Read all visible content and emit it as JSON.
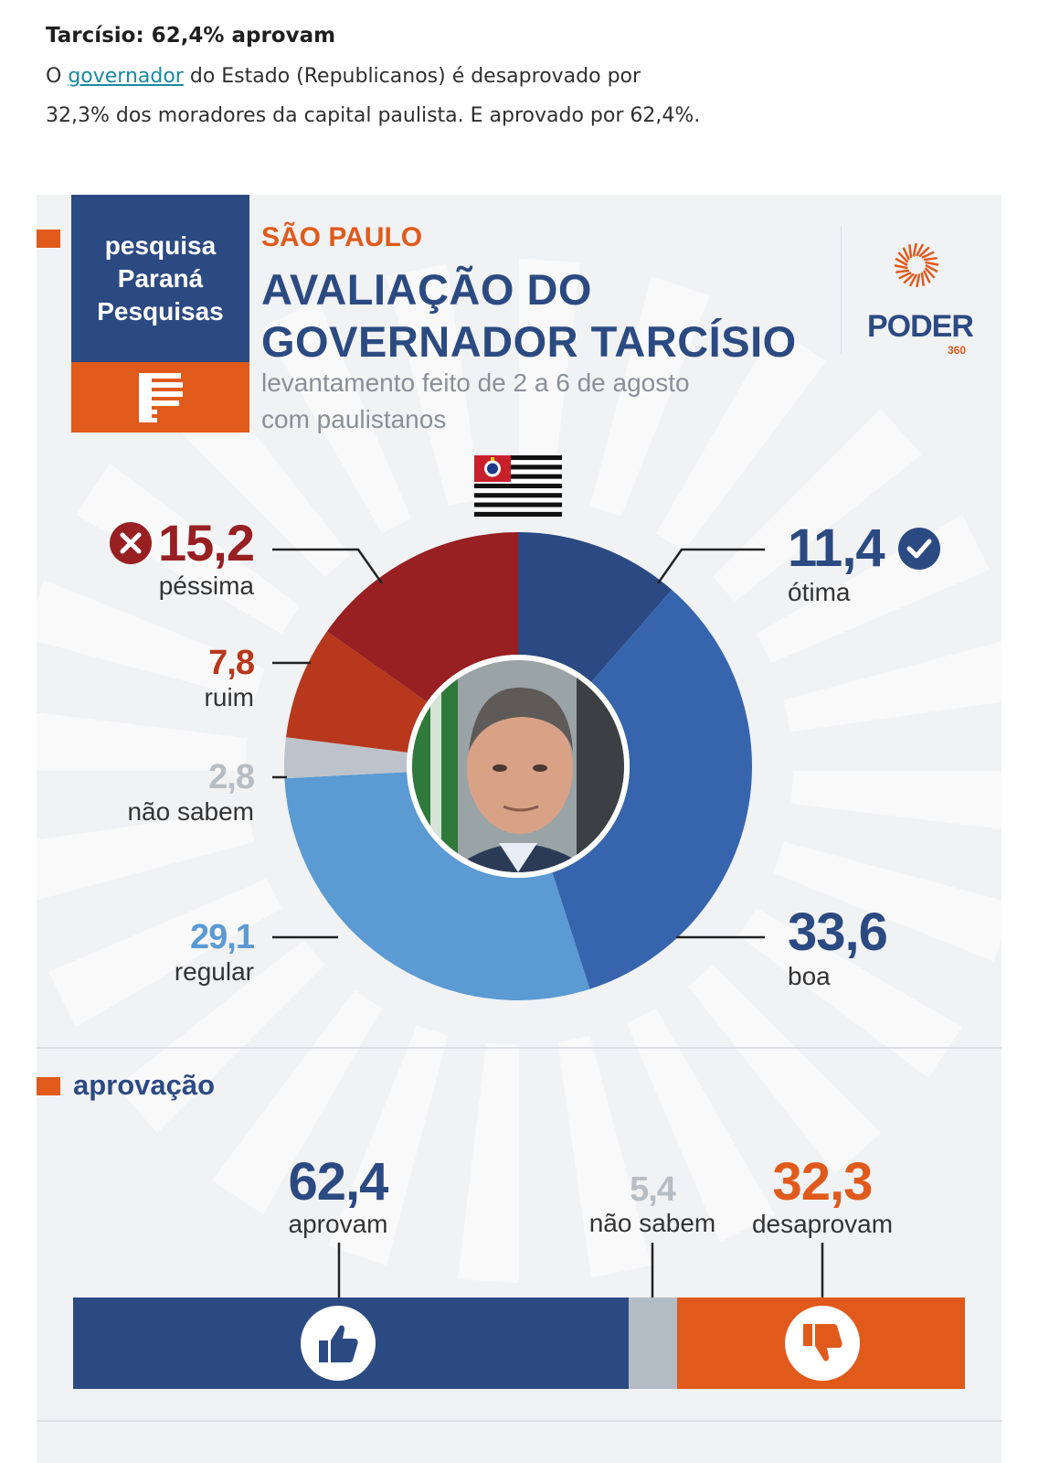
{
  "article": {
    "title": "Tarcísio: 62,4% aprovam",
    "body_prefix": "O ",
    "body_link": "governador",
    "body_rest": " do Estado (Republicanos) é desaprovado por 32,3% dos moradores da capital paulista. E aprovado por 62,4%."
  },
  "infographic": {
    "brand_lines": [
      "pesquisa",
      "Paraná",
      "Pesquisas"
    ],
    "region": "SÃO PAULO",
    "title_lines": [
      "AVALIAÇÃO DO",
      "GOVERNADOR TARCÍSIO"
    ],
    "subtitle_lines": [
      "levantamento feito de 2 a 6 de agosto",
      "com paulistanos"
    ],
    "publisher": "PODER",
    "publisher_number": "360",
    "section_label": "aprovação"
  },
  "colors": {
    "navy": "#2c4a82",
    "orange": "#e05a1c",
    "otima": "#2b4a83",
    "boa": "#3765ad",
    "regular": "#5b9ad3",
    "nao_sabem": "#bcc3ca",
    "ruim": "#b7381d",
    "pessima": "#981f22"
  },
  "chart_data": [
    {
      "type": "pie",
      "variant": "donut",
      "title": "AVALIAÇÃO DO GOVERNADOR TARCÍSIO",
      "slices": [
        {
          "label": "ótima",
          "value": 11.4,
          "display": "11,4",
          "color": "#2b4a83"
        },
        {
          "label": "boa",
          "value": 33.6,
          "display": "33,6",
          "color": "#3765ad"
        },
        {
          "label": "regular",
          "value": 29.1,
          "display": "29,1",
          "color": "#5b9ad3"
        },
        {
          "label": "não sabem",
          "value": 2.8,
          "display": "2,8",
          "color": "#bcc3ca"
        },
        {
          "label": "ruim",
          "value": 7.8,
          "display": "7,8",
          "color": "#b7381d"
        },
        {
          "label": "péssima",
          "value": 15.2,
          "display": "15,2",
          "color": "#981f22"
        }
      ]
    },
    {
      "type": "bar",
      "variant": "stacked-horizontal",
      "title": "aprovação",
      "segments": [
        {
          "label": "aprovam",
          "value": 62.4,
          "display": "62,4",
          "color": "#2c4a82"
        },
        {
          "label": "não sabem",
          "value": 5.4,
          "display": "5,4",
          "color": "#b3bcc5"
        },
        {
          "label": "desaprovam",
          "value": 32.3,
          "display": "32,3",
          "color": "#e05a1c"
        }
      ]
    }
  ]
}
